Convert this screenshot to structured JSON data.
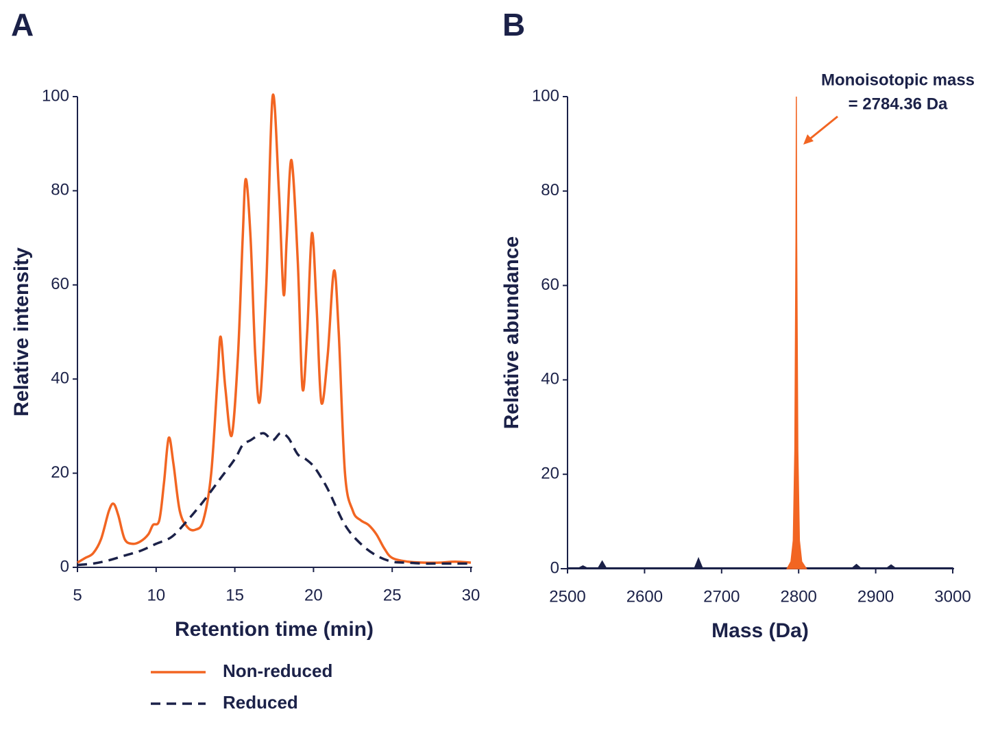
{
  "chart_data": [
    {
      "type": "line",
      "panel_label": "A",
      "x_label": "Retention time (min)",
      "y_label": "Relative intensity",
      "xlim": [
        5,
        30
      ],
      "xticks": [
        5,
        10,
        15,
        20,
        25,
        30
      ],
      "ylim": [
        0,
        100
      ],
      "yticks": [
        0,
        20,
        40,
        60,
        80,
        100
      ],
      "legend": "below",
      "series": [
        {
          "name": "Non-reduced",
          "color": "#f26522",
          "dashed": false,
          "x": [
            5,
            5.5,
            6,
            6.5,
            7,
            7.3,
            7.6,
            8,
            8.5,
            9,
            9.5,
            9.8,
            10.2,
            10.5,
            10.8,
            11.1,
            11.5,
            12,
            12.5,
            13,
            13.5,
            13.9,
            14.1,
            14.4,
            14.8,
            15.2,
            15.5,
            15.7,
            16,
            16.3,
            16.6,
            17,
            17.4,
            17.8,
            18.1,
            18.3,
            18.6,
            19,
            19.3,
            19.6,
            19.9,
            20.2,
            20.5,
            20.9,
            21.3,
            21.6,
            22,
            22.5,
            23,
            23.5,
            24,
            24.5,
            25,
            26,
            27,
            28,
            29,
            30
          ],
          "values": [
            1,
            2,
            3,
            6,
            12,
            13.5,
            11,
            6,
            5,
            5.5,
            7,
            9,
            10,
            18,
            27.5,
            22,
            12,
            8.5,
            8,
            10,
            20,
            40,
            49,
            38,
            28,
            45,
            70,
            82.5,
            70,
            45,
            35.5,
            60,
            100,
            80,
            58,
            70,
            86.5,
            65,
            38,
            50,
            71,
            55,
            35,
            45,
            63,
            50,
            20,
            12,
            10,
            9,
            7,
            4,
            2,
            1.2,
            1,
            1,
            1.2,
            1
          ]
        },
        {
          "name": "Reduced",
          "color": "#1b2148",
          "dashed": true,
          "x": [
            5,
            6,
            7,
            8,
            9,
            10,
            11,
            12,
            13,
            14,
            15,
            15.5,
            16,
            16.8,
            17.4,
            17.9,
            18.4,
            19,
            19.5,
            20,
            20.5,
            21,
            22,
            23,
            24,
            25,
            26,
            27,
            28,
            29,
            30
          ],
          "values": [
            0.5,
            0.8,
            1.5,
            2.5,
            3.5,
            5,
            6.5,
            10,
            14,
            18.5,
            23,
            26,
            27,
            28.5,
            27,
            28.5,
            27.5,
            24,
            23,
            21.5,
            19,
            16,
            9,
            5,
            2.5,
            1.2,
            1,
            0.8,
            0.8,
            0.8,
            0.8
          ]
        }
      ]
    },
    {
      "type": "area",
      "panel_label": "B",
      "x_label": "Mass (Da)",
      "y_label": "Relative abundance",
      "xlim": [
        2500,
        3000
      ],
      "xticks": [
        2500,
        2600,
        2700,
        2800,
        2900,
        3000
      ],
      "ylim": [
        0,
        100
      ],
      "yticks": [
        0,
        20,
        40,
        60,
        80,
        100
      ],
      "annotation": [
        "Monoisotopic mass",
        "= 2784.36 Da"
      ],
      "series": [
        {
          "color": "#1b2148",
          "x": [
            2500,
            2515,
            2520,
            2525,
            2540,
            2545,
            2550,
            2665,
            2670,
            2675,
            2870,
            2875,
            2880,
            2915,
            2920,
            2925,
            3000
          ],
          "values": [
            0.2,
            0.2,
            0.6,
            0.2,
            0.2,
            1.6,
            0.2,
            0.2,
            2.2,
            0.2,
            0.2,
            0.9,
            0.2,
            0.2,
            0.8,
            0.2,
            0.2
          ]
        },
        {
          "color": "#f26522",
          "x": [
            2785,
            2790,
            2793,
            2795,
            2796.5,
            2797,
            2797.5,
            2799,
            2801,
            2804,
            2810
          ],
          "values": [
            0,
            1.5,
            6,
            25,
            70,
            100,
            70,
            25,
            6,
            1.5,
            0
          ]
        }
      ]
    }
  ]
}
